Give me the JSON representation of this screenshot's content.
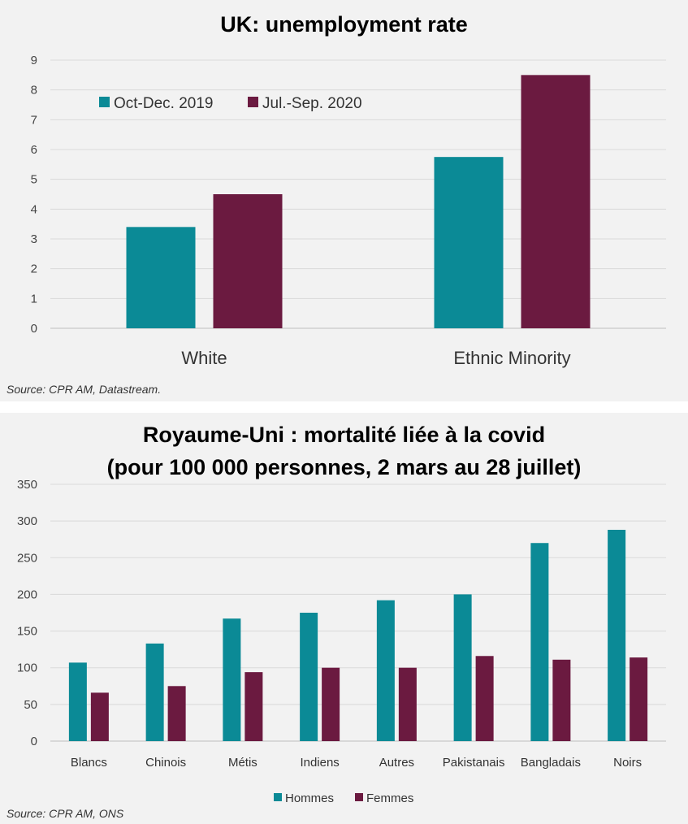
{
  "colors": {
    "teal": "#0b8a96",
    "maroon": "#6b1a40"
  },
  "chart_data": [
    {
      "type": "bar",
      "title": "UK: unemployment rate",
      "categories": [
        "White",
        "Ethnic Minority"
      ],
      "series": [
        {
          "name": "Oct-Dec. 2019",
          "values": [
            3.4,
            5.75
          ]
        },
        {
          "name": "Jul.-Sep. 2020",
          "values": [
            4.5,
            8.5
          ]
        }
      ],
      "ylim": [
        0,
        9
      ],
      "yticks": [
        "0",
        "1",
        "2",
        "3",
        "4",
        "5",
        "6",
        "7",
        "8",
        "9"
      ],
      "grid": true,
      "legend": "top-left",
      "source": "Source: CPR AM, Datastream."
    },
    {
      "type": "bar",
      "title": "Royaume-Uni : mortalité liée à la covid",
      "subtitle": "(pour 100 000 personnes, 2 mars au 28 juillet)",
      "categories": [
        "Blancs",
        "Chinois",
        "Métis",
        "Indiens",
        "Autres",
        "Pakistanais",
        "Bangladais",
        "Noirs"
      ],
      "series": [
        {
          "name": "Hommes",
          "values": [
            107,
            133,
            167,
            175,
            192,
            200,
            270,
            288
          ]
        },
        {
          "name": "Femmes",
          "values": [
            66,
            75,
            94,
            100,
            100,
            116,
            111,
            114
          ]
        }
      ],
      "ylim": [
        0,
        350
      ],
      "yticks": [
        "0",
        "50",
        "100",
        "150",
        "200",
        "250",
        "300",
        "350"
      ],
      "grid": true,
      "legend": "bottom-center",
      "source": "Source: CPR AM, ONS"
    }
  ]
}
